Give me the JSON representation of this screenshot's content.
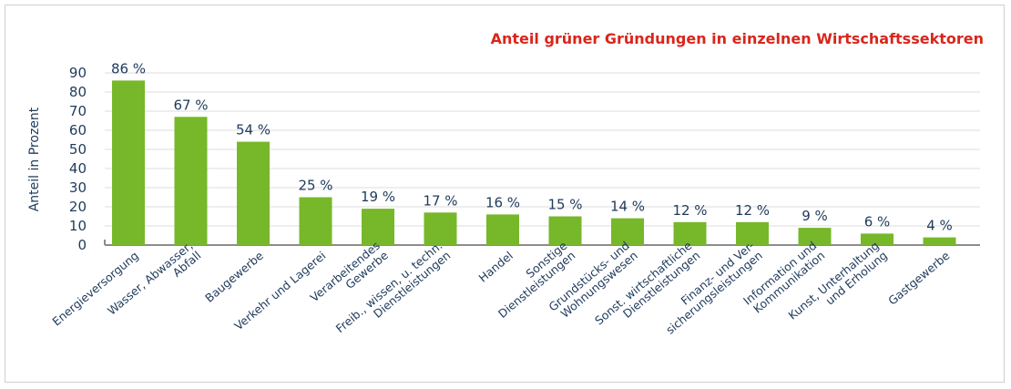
{
  "chart_data": {
    "type": "bar",
    "title": "Anteil grüner Gründungen in einzelnen Wirtschaftssektoren",
    "xlabel": "",
    "ylabel": "Anteil in Prozent",
    "ylim": [
      0,
      90
    ],
    "yticks": [
      0,
      10,
      20,
      30,
      40,
      50,
      60,
      70,
      80,
      90
    ],
    "grid": true,
    "categories": [
      [
        "Energieversorgung"
      ],
      [
        "Wasser, Abwasser,",
        "Abfall"
      ],
      [
        "Baugewerbe"
      ],
      [
        "Verkehr und Lagerei"
      ],
      [
        "Verarbeitendes",
        "Gewerbe"
      ],
      [
        "Freib., wissen, u. techn.",
        "Dienstleistungen"
      ],
      [
        "Handel"
      ],
      [
        "Sonstige",
        "Dienstleistungen"
      ],
      [
        "Grundstücks- und",
        "Wohnungswesen"
      ],
      [
        "Sonst. wirtschaftliche",
        "Dienstleistungen"
      ],
      [
        "Finanz- und Ver-",
        "sicherungsleistungen"
      ],
      [
        "Information und",
        "Kommunikation"
      ],
      [
        "Kunst, Unterhaltung",
        "und Erholung"
      ],
      [
        "Gastgewerbe"
      ]
    ],
    "values": [
      86,
      67,
      54,
      25,
      19,
      17,
      16,
      15,
      14,
      12,
      12,
      9,
      6,
      4
    ],
    "value_labels": [
      "86 %",
      "67 %",
      "54 %",
      "25 %",
      "19 %",
      "17 %",
      "16 %",
      "15 %",
      "14 %",
      "12 %",
      "12 %",
      "9 %",
      "6 %",
      "4 %"
    ],
    "colors": {
      "bar": "#77b72a",
      "title": "#d9261c",
      "grid": "#dcdcdc",
      "axis": "#8c8c8c",
      "text": "#1f3a5c"
    }
  }
}
